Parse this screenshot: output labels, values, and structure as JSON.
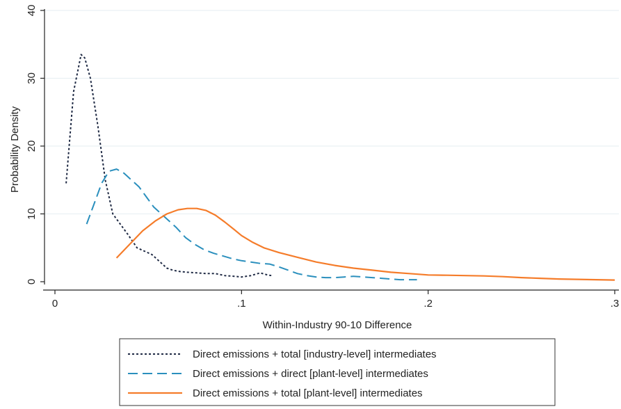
{
  "chart_data": {
    "type": "line",
    "title": "",
    "xlabel": "Within-Industry 90-10 Difference",
    "ylabel": "Probability Density",
    "xlim": [
      0,
      0.3
    ],
    "ylim": [
      0,
      40
    ],
    "xticks": [
      0,
      0.1,
      0.2,
      0.3
    ],
    "xtick_labels": [
      "0",
      ".1",
      ".2",
      ".3"
    ],
    "yticks": [
      0,
      10,
      20,
      30,
      40
    ],
    "ytick_labels": [
      "0",
      "10",
      "20",
      "30",
      "40"
    ],
    "grid": "horizontal",
    "legend_position": "bottom",
    "series": [
      {
        "name": "Direct emissions + total [industry-level] intermediates",
        "color": "#1f2a44",
        "style": "dotted",
        "x": [
          0.006,
          0.01,
          0.014,
          0.016,
          0.019,
          0.023,
          0.027,
          0.031,
          0.035,
          0.039,
          0.044,
          0.048,
          0.052,
          0.056,
          0.06,
          0.063,
          0.067,
          0.071,
          0.076,
          0.081,
          0.086,
          0.091,
          0.096,
          0.1,
          0.105,
          0.11,
          0.114,
          0.116
        ],
        "y": [
          14.5,
          28,
          33.5,
          33,
          30,
          23,
          15,
          10,
          8.5,
          7,
          5,
          4.5,
          4,
          3,
          2,
          1.7,
          1.5,
          1.4,
          1.3,
          1.2,
          1.2,
          0.9,
          0.8,
          0.7,
          0.9,
          1.3,
          1.0,
          0.9
        ]
      },
      {
        "name": "Direct emissions + direct [plant-level] intermediates",
        "color": "#2a8fbd",
        "style": "dashed",
        "x": [
          0.017,
          0.021,
          0.025,
          0.029,
          0.033,
          0.037,
          0.041,
          0.045,
          0.049,
          0.053,
          0.057,
          0.061,
          0.065,
          0.07,
          0.075,
          0.08,
          0.085,
          0.09,
          0.095,
          0.1,
          0.105,
          0.11,
          0.115,
          0.12,
          0.125,
          0.13,
          0.135,
          0.14,
          0.145,
          0.15,
          0.155,
          0.16,
          0.165,
          0.17,
          0.175,
          0.18,
          0.185,
          0.19,
          0.194
        ],
        "y": [
          8.5,
          11.5,
          14.5,
          16.3,
          16.6,
          16.0,
          15.0,
          14.0,
          12.5,
          11.0,
          10.0,
          9.0,
          8.0,
          6.5,
          5.5,
          4.7,
          4.2,
          3.8,
          3.4,
          3.1,
          2.9,
          2.7,
          2.6,
          2.2,
          1.7,
          1.2,
          0.9,
          0.7,
          0.6,
          0.6,
          0.7,
          0.8,
          0.7,
          0.6,
          0.5,
          0.4,
          0.3,
          0.3,
          0.3
        ]
      },
      {
        "name": "Direct emissions + total [plant-level] intermediates",
        "color": "#f57c2a",
        "style": "solid",
        "x": [
          0.033,
          0.04,
          0.047,
          0.054,
          0.06,
          0.066,
          0.071,
          0.076,
          0.081,
          0.086,
          0.091,
          0.096,
          0.1,
          0.106,
          0.112,
          0.12,
          0.13,
          0.14,
          0.15,
          0.16,
          0.17,
          0.18,
          0.19,
          0.2,
          0.21,
          0.22,
          0.23,
          0.24,
          0.25,
          0.26,
          0.27,
          0.28,
          0.29,
          0.3
        ],
        "y": [
          3.5,
          5.5,
          7.5,
          9.0,
          10.0,
          10.6,
          10.8,
          10.8,
          10.5,
          9.8,
          8.8,
          7.7,
          6.8,
          5.8,
          5.0,
          4.3,
          3.6,
          2.9,
          2.4,
          2.0,
          1.7,
          1.4,
          1.2,
          1.0,
          0.95,
          0.9,
          0.85,
          0.75,
          0.6,
          0.5,
          0.4,
          0.35,
          0.3,
          0.25
        ]
      }
    ]
  }
}
